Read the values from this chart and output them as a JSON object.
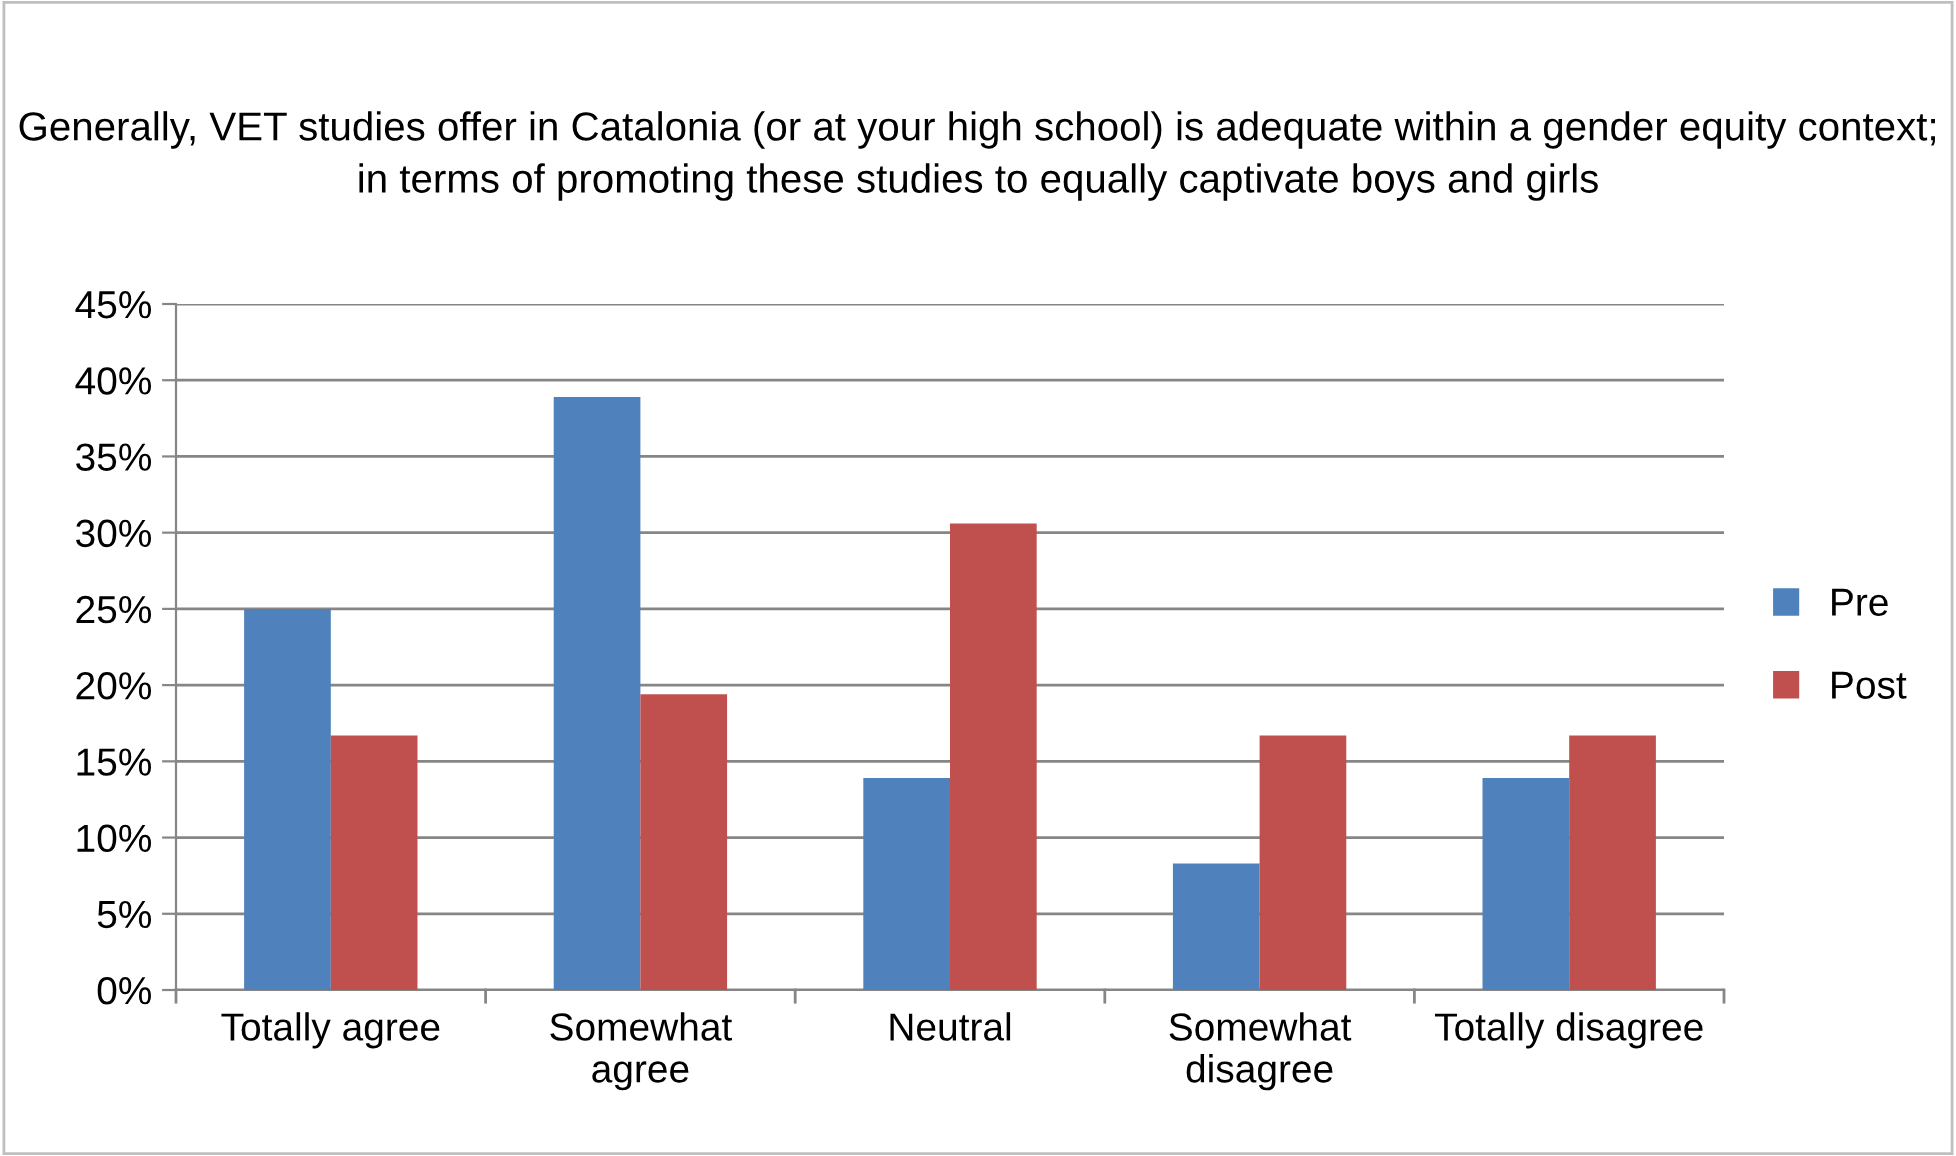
{
  "chart_data": {
    "type": "bar",
    "title": "Generally, VET studies offer in Catalonia (or at your high school) is adequate within a gender equity context; in terms of promoting these studies to equally captivate boys and girls",
    "categories": [
      "Totally agree",
      "Somewhat\nagree",
      "Neutral",
      "Somewhat\ndisagree",
      "Totally disagree"
    ],
    "series": [
      {
        "name": "Pre",
        "color": "#4f81bd",
        "values": [
          25.0,
          38.9,
          13.9,
          8.3,
          13.9
        ]
      },
      {
        "name": "Post",
        "color": "#c0504d",
        "values": [
          16.7,
          19.4,
          30.6,
          16.7,
          16.7
        ]
      }
    ],
    "ylim": [
      0,
      45
    ],
    "yticks": [
      {
        "value": 0,
        "label": "0%"
      },
      {
        "value": 5,
        "label": "5%"
      },
      {
        "value": 10,
        "label": "10%"
      },
      {
        "value": 15,
        "label": "15%"
      },
      {
        "value": 20,
        "label": "20%"
      },
      {
        "value": 25,
        "label": "25%"
      },
      {
        "value": 30,
        "label": "30%"
      },
      {
        "value": 35,
        "label": "35%"
      },
      {
        "value": 40,
        "label": "40%"
      },
      {
        "value": 45,
        "label": "45%"
      }
    ],
    "grid": "y",
    "legend": "right"
  }
}
